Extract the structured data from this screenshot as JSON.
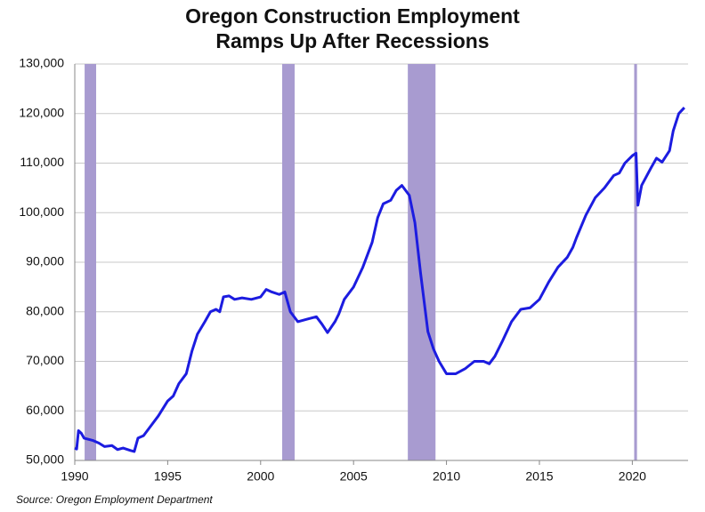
{
  "chart_data": {
    "type": "line",
    "title": "Oregon Construction Employment Ramps Up After Recessions",
    "source": "Source: Oregon Employment Department",
    "color": "#1c1ce0",
    "recession_color": "#a89bd0",
    "recessions": [
      [
        1990.53,
        1991.15
      ],
      [
        2001.16,
        2001.83
      ],
      [
        2007.92,
        2009.41
      ],
      [
        2020.1,
        2020.25
      ]
    ],
    "x": [
      1990.0,
      1990.1,
      1990.2,
      1990.35,
      1990.5,
      1990.8,
      1991.0,
      1991.3,
      1991.6,
      1992.0,
      1992.3,
      1992.6,
      1993.0,
      1993.2,
      1993.4,
      1993.7,
      1994.0,
      1994.5,
      1995.0,
      1995.3,
      1995.6,
      1996.0,
      1996.3,
      1996.6,
      1997.0,
      1997.3,
      1997.6,
      1997.8,
      1998.0,
      1998.3,
      1998.6,
      1999.0,
      1999.5,
      2000.0,
      2000.3,
      2000.6,
      2001.0,
      2001.3,
      2001.6,
      2002.0,
      2002.5,
      2003.0,
      2003.3,
      2003.6,
      2004.0,
      2004.2,
      2004.5,
      2005.0,
      2005.5,
      2006.0,
      2006.3,
      2006.6,
      2007.0,
      2007.3,
      2007.6,
      2008.0,
      2008.3,
      2008.6,
      2009.0,
      2009.3,
      2009.6,
      2010.0,
      2010.5,
      2011.0,
      2011.5,
      2012.0,
      2012.3,
      2012.6,
      2013.0,
      2013.5,
      2014.0,
      2014.5,
      2015.0,
      2015.5,
      2016.0,
      2016.5,
      2016.8,
      2017.0,
      2017.5,
      2018.0,
      2018.5,
      2019.0,
      2019.3,
      2019.6,
      2020.0,
      2020.2,
      2020.3,
      2020.5,
      2021.0,
      2021.3,
      2021.6,
      2022.0,
      2022.2,
      2022.5,
      2022.8
    ],
    "values": [
      52500,
      52300,
      56000,
      55500,
      54500,
      54200,
      54000,
      53500,
      52800,
      53000,
      52200,
      52500,
      52000,
      51800,
      54500,
      55000,
      56500,
      59000,
      62000,
      63000,
      65500,
      67500,
      72000,
      75500,
      78000,
      80000,
      80500,
      80000,
      83000,
      83200,
      82500,
      82800,
      82500,
      83000,
      84500,
      84000,
      83500,
      84000,
      80000,
      78000,
      78500,
      79000,
      77500,
      75800,
      78000,
      79500,
      82500,
      85000,
      89000,
      94000,
      99000,
      101800,
      102500,
      104500,
      105500,
      103500,
      98000,
      88000,
      76000,
      72500,
      70000,
      67500,
      67500,
      68500,
      70000,
      70000,
      69500,
      71000,
      74000,
      78000,
      80500,
      80800,
      82500,
      86000,
      89000,
      91000,
      93000,
      95000,
      99500,
      103000,
      105000,
      107500,
      108000,
      110000,
      111500,
      112000,
      101500,
      105500,
      109000,
      111000,
      110200,
      112500,
      116500,
      120000,
      121200
    ],
    "xlim": [
      1990,
      2023
    ],
    "xticks": [
      1990,
      1995,
      2000,
      2005,
      2010,
      2015,
      2020
    ],
    "ylim": [
      50000,
      130000
    ],
    "yticks": [
      {
        "value": 50000,
        "label": "50,000"
      },
      {
        "value": 60000,
        "label": "60,000"
      },
      {
        "value": 70000,
        "label": "70,000"
      },
      {
        "value": 80000,
        "label": "80,000"
      },
      {
        "value": 90000,
        "label": "90,000"
      },
      {
        "value": 100000,
        "label": "100,000"
      },
      {
        "value": 110000,
        "label": "110,000"
      },
      {
        "value": 120000,
        "label": "120,000"
      },
      {
        "value": 130000,
        "label": "130,000"
      }
    ],
    "grid": true
  }
}
